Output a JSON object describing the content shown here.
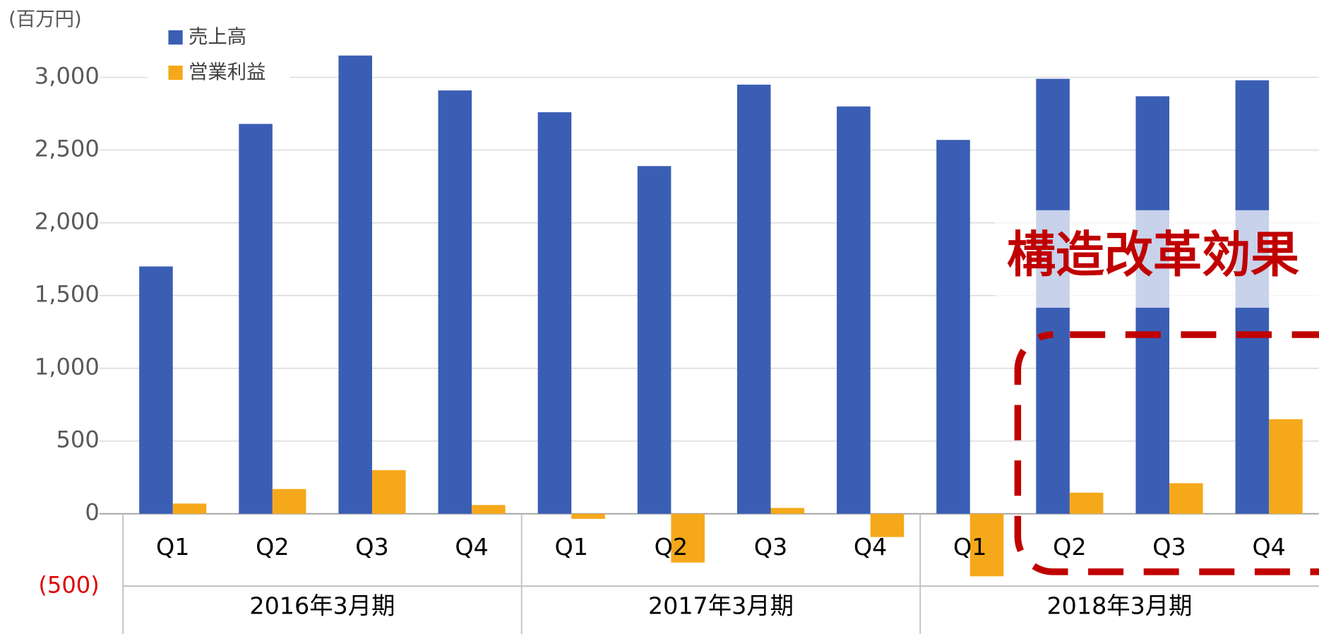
{
  "chart_data": {
    "type": "bar",
    "y_label": "(百万円)",
    "categories": [
      "Q1",
      "Q2",
      "Q3",
      "Q4",
      "Q1",
      "Q2",
      "Q3",
      "Q4",
      "Q1",
      "Q2",
      "Q3",
      "Q4"
    ],
    "groups": [
      "2016年3月期",
      "2017年3月期",
      "2018年3月期"
    ],
    "series": [
      {
        "name": "売上高",
        "color": "#3a5eb4",
        "values": [
          1700,
          2680,
          3150,
          2910,
          2760,
          2390,
          2950,
          2800,
          2570,
          2990,
          2870,
          2980
        ]
      },
      {
        "name": "営業利益",
        "color": "#f5a81a",
        "values": [
          70,
          170,
          300,
          60,
          -35,
          -335,
          40,
          -160,
          -430,
          145,
          210,
          650
        ]
      }
    ],
    "ylim": [
      -800,
      3500
    ],
    "yticks": [
      {
        "value": -500,
        "label": "(500)"
      },
      0,
      500,
      {
        "value": 1000,
        "label": "1,000"
      },
      {
        "value": 1500,
        "label": "1,500"
      },
      {
        "value": 2000,
        "label": "2,000"
      },
      {
        "value": 2500,
        "label": "2,500"
      },
      {
        "value": 3000,
        "label": "3,000"
      }
    ],
    "grid": true,
    "legend": "top-left",
    "annotation": "構造改革効果"
  }
}
